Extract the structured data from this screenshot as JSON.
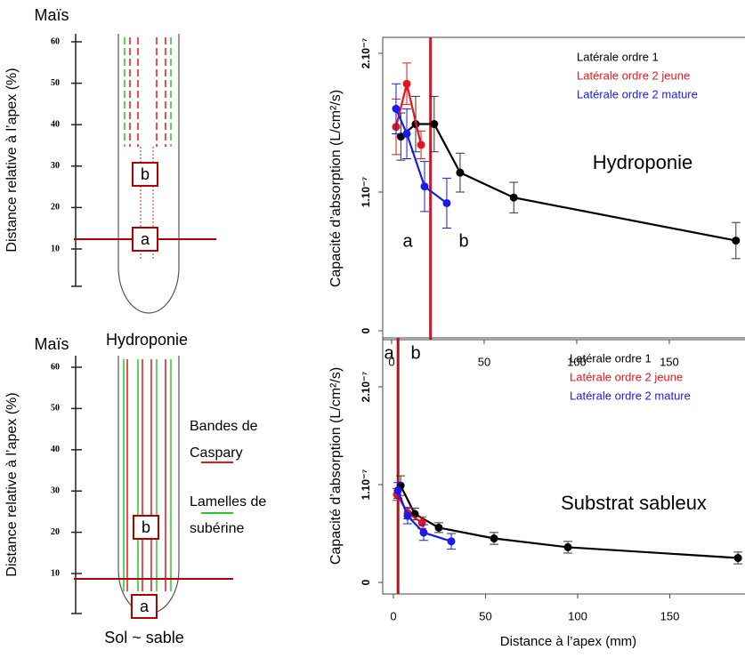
{
  "chart_data": [
    {
      "type": "line",
      "y_label": "Capacité d’absorption (L/cm²/s)",
      "annotation": "Hydroponie",
      "region_labels": [
        "a",
        "b"
      ],
      "divider_x": 21,
      "divider_color": "#d9141c",
      "xlim": [
        -4.8,
        190.9
      ],
      "xticks": [
        0,
        50,
        100,
        150
      ],
      "ylim": [
        -6.4e-09,
        2.115e-07
      ],
      "yticks": [
        0,
        {
          "value": 1e-07,
          "label": "1.10⁻⁷"
        },
        {
          "value": 2e-07,
          "label": "2.10⁻⁷"
        }
      ],
      "legend": "top-right",
      "series": [
        {
          "name": "Latérale ordre 1",
          "color": "#000000",
          "x": [
            5,
            13,
            23,
            37,
            66,
            186
          ],
          "values": [
            1.4e-07,
            1.49e-07,
            1.49e-07,
            1.14e-07,
            9.6e-08,
            6.5e-08
          ],
          "errors": [
            1.7e-08,
            2e-08,
            2e-08,
            1.4e-08,
            1.1e-08,
            1.3e-08
          ]
        },
        {
          "name": "Latérale ordre 2 jeune",
          "color": "#e8141c",
          "x": [
            2.4,
            8.2,
            15.9
          ],
          "values": [
            1.47e-07,
            1.78e-07,
            1.34e-07
          ],
          "errors": [
            2e-08,
            1.5e-08,
            1e-08
          ]
        },
        {
          "name": "Latérale ordre 2 mature",
          "color": "#1a1aeb",
          "x": [
            2.4,
            8.2,
            17.8,
            29.8
          ],
          "values": [
            1.6e-07,
            1.42e-07,
            1.04e-07,
            9.2e-08
          ],
          "errors": [
            1.8e-08,
            1.8e-08,
            1.8e-08,
            1.8e-08
          ]
        }
      ]
    },
    {
      "type": "line",
      "y_label": "Capacité d’absorption (L/cm²/s)",
      "x_label": "Distance à l’apex (mm)",
      "annotation": "Substrat sableux",
      "region_labels": [
        "a",
        "b"
      ],
      "divider_x": 2.5,
      "divider_color": "#b0141c",
      "xlim": [
        -5.8,
        190.8
      ],
      "xticks": [
        0,
        50,
        100,
        150
      ],
      "ylim": [
        -1.18e-08,
        2.5e-07
      ],
      "yticks": [
        0,
        {
          "value": 1e-07,
          "label": "1.10⁻⁷"
        },
        {
          "value": 2e-07,
          "label": "2.10⁻⁷"
        }
      ],
      "legend": "top-right",
      "series": [
        {
          "name": "Latérale ordre 1",
          "color": "#000000",
          "x": [
            3.9,
            11.6,
            24.6,
            54.6,
            94.7,
            187
          ],
          "values": [
            9.9e-08,
            7e-08,
            5.6e-08,
            4.5e-08,
            3.6e-08,
            2.5e-08
          ],
          "errors": [
            1e-08,
            6e-09,
            5e-09,
            6e-09,
            6e-09,
            6e-09
          ]
        },
        {
          "name": "Latérale ordre 2 jeune",
          "color": "#e8141c",
          "x": [
            1.9,
            7.7,
            15.5
          ],
          "values": [
            9e-08,
            7.1e-08,
            6.1e-08
          ],
          "errors": [
            6e-09,
            6e-09,
            6e-09
          ]
        },
        {
          "name": "Latérale ordre 2 mature",
          "color": "#1a1aeb",
          "x": [
            2.4,
            7.7,
            16.4,
            31.4
          ],
          "values": [
            9.4e-08,
            6.8e-08,
            5.1e-08,
            4.2e-08
          ],
          "errors": [
            8e-09,
            8e-09,
            8e-09,
            8e-09
          ]
        }
      ]
    }
  ],
  "diagrams": [
    {
      "title": "Maïs",
      "y_label": "Distance relative à l’apex (%)",
      "yticks": [
        60,
        50,
        40,
        30,
        20,
        10
      ],
      "box_labels": [
        "b",
        "a"
      ],
      "caption": "Hydroponie"
    },
    {
      "title": "Maïs",
      "y_label": "Distance relative à l’apex (%)",
      "yticks": [
        60,
        50,
        40,
        30,
        20,
        10
      ],
      "box_labels": [
        "b",
        "a"
      ],
      "caption": "Sol ~ sable",
      "legend": [
        {
          "lines": [
            "Bandes de",
            "Caspary"
          ],
          "color": "#e8141c"
        },
        {
          "lines": [
            "Lamelles de",
            "subérine"
          ],
          "color": "#22cc22"
        }
      ]
    }
  ]
}
